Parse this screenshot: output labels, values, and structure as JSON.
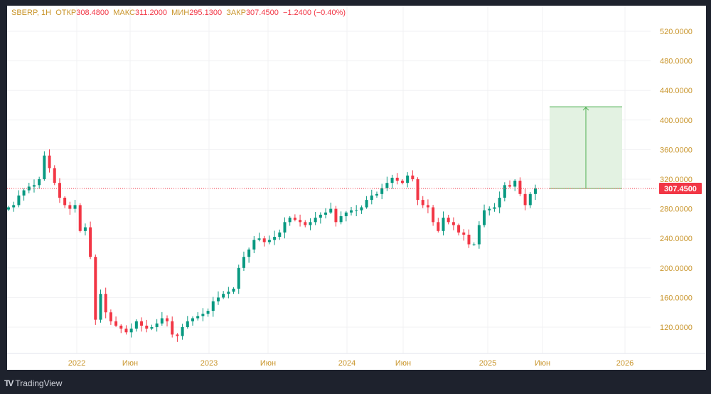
{
  "header": {
    "symbol": "SBERP, 1H",
    "open_label": "ОТКР",
    "open": "308.4800",
    "high_label": "МАКС",
    "high": "311.2000",
    "low_label": "МИН",
    "low": "295.1300",
    "close_label": "ЗАКР",
    "close": "307.4500",
    "change": "−1.2400 (−0.40%)"
  },
  "brand": {
    "name": "TradingView"
  },
  "colors": {
    "up": "#089981",
    "down": "#f23645",
    "axis_text": "#c9952b",
    "target_fill": "#e3f2e2",
    "target_line": "#4caf50"
  },
  "chart_data": {
    "type": "candlestick",
    "title": "SBERP",
    "ylim": [
      95,
      540
    ],
    "y_ticks": [
      "120.0000",
      "160.0000",
      "200.0000",
      "240.0000",
      "280.0000",
      "320.0000",
      "360.0000",
      "400.0000",
      "440.0000",
      "480.0000",
      "520.0000"
    ],
    "y_tick_values": [
      120,
      160,
      200,
      240,
      280,
      320,
      360,
      400,
      440,
      480,
      520
    ],
    "x_ticks": [
      "2022",
      "Июн",
      "2023",
      "Июн",
      "2024",
      "Июн",
      "2025",
      "Июн",
      "2026"
    ],
    "last_price": 307.45,
    "last_price_label": "307.4500",
    "target_price": 418,
    "closes": [
      282,
      285,
      298,
      305,
      310,
      312,
      320,
      352,
      335,
      315,
      295,
      285,
      280,
      285,
      250,
      255,
      215,
      130,
      165,
      140,
      128,
      122,
      118,
      113,
      118,
      128,
      122,
      118,
      120,
      125,
      132,
      128,
      110,
      108,
      120,
      128,
      132,
      135,
      138,
      142,
      155,
      160,
      165,
      168,
      172,
      200,
      215,
      225,
      238,
      240,
      235,
      238,
      242,
      248,
      262,
      268,
      265,
      262,
      258,
      262,
      268,
      272,
      275,
      280,
      262,
      270,
      275,
      278,
      278,
      282,
      292,
      298,
      300,
      308,
      315,
      322,
      318,
      315,
      325,
      320,
      292,
      285,
      282,
      262,
      250,
      268,
      262,
      258,
      248,
      245,
      232,
      232,
      258,
      278,
      280,
      282,
      295,
      312,
      310,
      318,
      300,
      285,
      300,
      307.45
    ]
  }
}
